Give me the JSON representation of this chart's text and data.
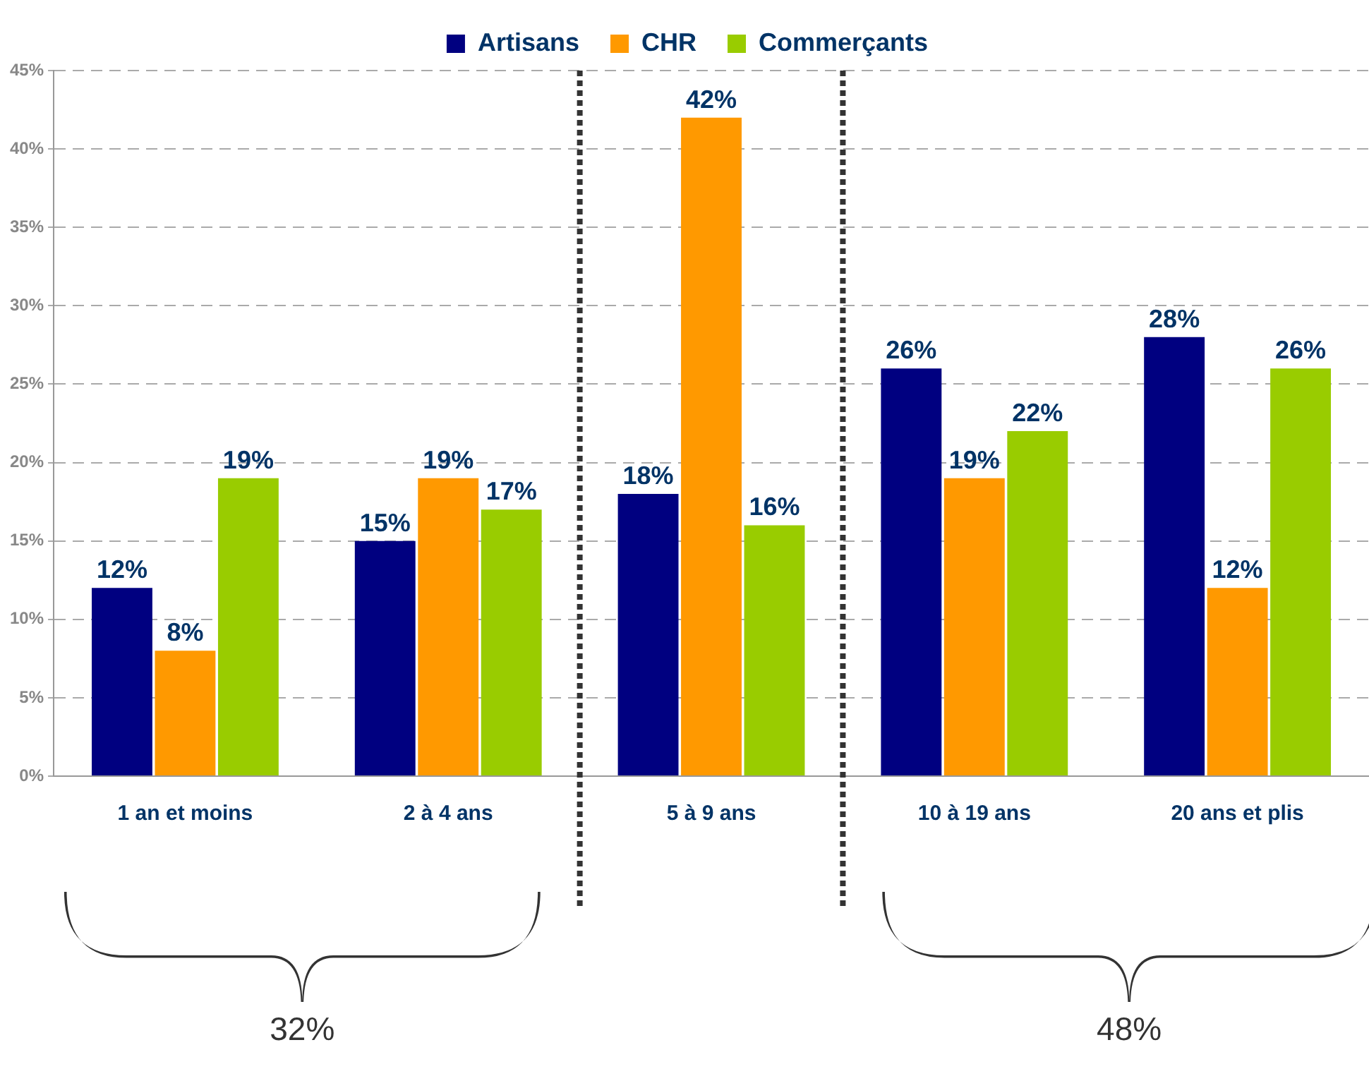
{
  "chart_data": {
    "type": "bar",
    "categories": [
      "1 an et moins",
      "2 à 4 ans",
      "5 à 9 ans",
      "10 à 19 ans",
      "20 ans et plis"
    ],
    "series": [
      {
        "name": "Artisans",
        "color": "#000080",
        "values": [
          12,
          15,
          18,
          26,
          28
        ],
        "value_labels": [
          "12%",
          "15%",
          "18%",
          "26%",
          "28%"
        ]
      },
      {
        "name": "CHR",
        "color": "#ff9900",
        "values": [
          8,
          19,
          42,
          19,
          12
        ],
        "value_labels": [
          "8%",
          "19%",
          "42%",
          "19%",
          "12%"
        ]
      },
      {
        "name": "Commerçants",
        "color": "#99cc00",
        "values": [
          19,
          17,
          16,
          22,
          26
        ],
        "value_labels": [
          "19%",
          "17%",
          "16%",
          "22%",
          "26%"
        ]
      }
    ],
    "ylim": [
      0,
      45
    ],
    "yticks": [
      {
        "value": 0,
        "label": "0%"
      },
      {
        "value": 5,
        "label": "5%"
      },
      {
        "value": 10,
        "label": "10%"
      },
      {
        "value": 15,
        "label": "15%"
      },
      {
        "value": 20,
        "label": "20%"
      },
      {
        "value": 25,
        "label": "25%"
      },
      {
        "value": 30,
        "label": "30%"
      },
      {
        "value": 35,
        "label": "35%"
      },
      {
        "value": 40,
        "label": "40%"
      },
      {
        "value": 45,
        "label": "45%"
      }
    ],
    "grid": "y",
    "legend": "top",
    "annotations": [
      "32%",
      "48%"
    ]
  }
}
